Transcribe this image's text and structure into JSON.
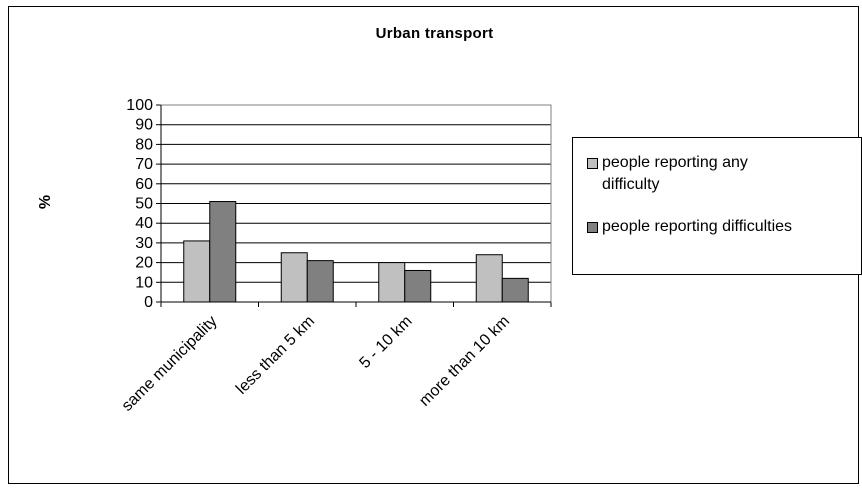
{
  "chart_data": {
    "type": "bar",
    "title": "Urban transport",
    "ylabel": "%",
    "xlabel": "",
    "ylim": [
      0,
      100
    ],
    "yticks": [
      0,
      10,
      20,
      30,
      40,
      50,
      60,
      70,
      80,
      90,
      100
    ],
    "categories": [
      "same municipality",
      "less than 5 km",
      "5 - 10 km",
      "more than 10 km"
    ],
    "series": [
      {
        "name": "people reporting any difficulty",
        "values": [
          31,
          25,
          20,
          24
        ],
        "color": "#c0c0c0"
      },
      {
        "name": "people reporting difficulties",
        "values": [
          51,
          21,
          16,
          12
        ],
        "color": "#808080"
      }
    ],
    "grid": true,
    "legend_position": "right"
  }
}
